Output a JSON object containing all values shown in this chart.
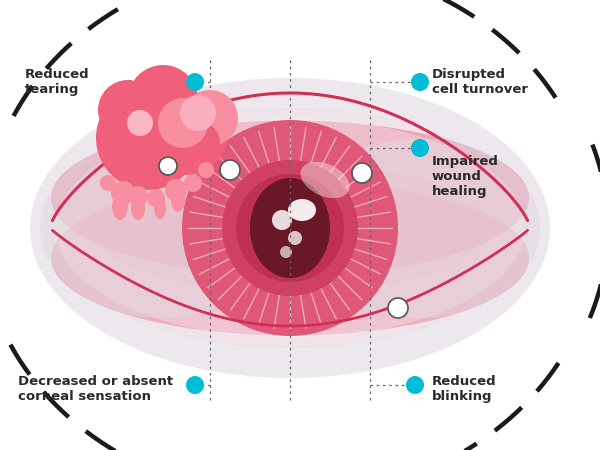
{
  "bg_color": "#ffffff",
  "label_color": "#2a2a2a",
  "dot_color": "#00bcd4",
  "dashed_color": "#1a1a1a",
  "dotted_color": "#333333",
  "gland_color": "#f0607a",
  "gland_light": "#f88fa0",
  "eye_sclera": "#e8e0e8",
  "eye_sclera2": "#ddd5dc",
  "eye_pink_band": "#e8607a",
  "eye_pink_mid": "#f0a0b0",
  "iris_outer": "#e05878",
  "iris_mid": "#d04060",
  "iris_inner": "#c03050",
  "pupil_color": "#6a1828",
  "iris_ray_color": "#f5c0c8",
  "labels": {
    "reduced_tearing": "Reduced\ntearing",
    "disrupted": "Disrupted\ncell turnover",
    "impaired": "Impaired\nwound\nhealing",
    "decreased": "Decreased or absent\ncorneal sensation",
    "reduced_blinking": "Reduced\nblinking"
  }
}
